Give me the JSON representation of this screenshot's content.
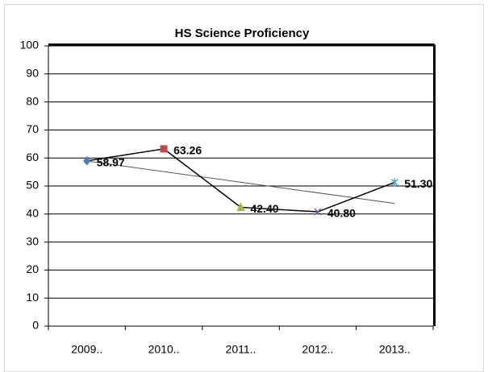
{
  "chart_data": {
    "type": "line",
    "title": "HS Science Proficiency",
    "categories": [
      "2009..",
      "2010..",
      "2011..",
      "2012..",
      "2013.."
    ],
    "values": [
      58.97,
      63.26,
      42.4,
      40.8,
      51.3
    ],
    "value_labels": [
      "58.97",
      "63.26",
      "42.40",
      "40.80",
      "51.30"
    ],
    "color": "#000000",
    "point_colors": [
      "#4a7ebb",
      "#be4b48",
      "#98b954",
      "#7d60a0",
      "#46aac5"
    ],
    "trendline": true,
    "ylim": [
      0,
      100
    ],
    "yticks": [
      0,
      10,
      20,
      30,
      40,
      50,
      60,
      70,
      80,
      90,
      100
    ],
    "grid": true
  }
}
